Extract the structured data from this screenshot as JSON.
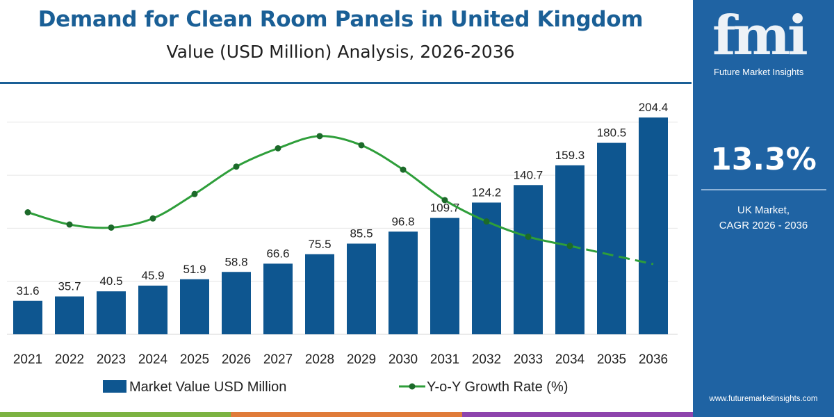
{
  "title": "Demand for Clean Room Panels in United Kingdom",
  "subtitle": "Value (USD Million) Analysis, 2026-2036",
  "colors": {
    "bar": "#0e5690",
    "line": "#2e9e3a",
    "accent": "#1a5f96",
    "panel": "#1f63a3",
    "bottom_bar": [
      "#7cb342",
      "#e07b39",
      "#8e44ad"
    ]
  },
  "chart_data": {
    "type": "bar",
    "categories": [
      "2021",
      "2022",
      "2023",
      "2024",
      "2025",
      "2026",
      "2027",
      "2028",
      "2029",
      "2030",
      "2031",
      "2032",
      "2033",
      "2034",
      "2035",
      "2036"
    ],
    "series": [
      {
        "name": "Market Value USD Million",
        "type": "bar",
        "values": [
          31.6,
          35.7,
          40.5,
          45.9,
          51.9,
          58.8,
          66.6,
          75.5,
          85.5,
          96.8,
          109.7,
          124.2,
          140.7,
          159.3,
          180.5,
          204.4
        ],
        "labels": [
          "31.6",
          "35.7",
          "40.5",
          "45.9",
          "51.9",
          "58.8",
          "66.6",
          "75.5",
          "85.5",
          "96.8",
          "109.7",
          "124.2",
          "140.7",
          "159.3",
          "180.5",
          "204.4"
        ]
      },
      {
        "name": "Y-o-Y Growth Rate (%)",
        "type": "line",
        "values": [
          13.0,
          12.8,
          12.75,
          12.9,
          13.3,
          13.75,
          14.05,
          14.25,
          14.1,
          13.7,
          13.2,
          12.85,
          12.6,
          12.45,
          12.3,
          12.15
        ],
        "dashed_from_index": 13
      }
    ],
    "ylim": [
      0,
      230
    ],
    "y2lim": [
      11,
      15
    ],
    "legend": "bottom",
    "grid": true
  },
  "legend": {
    "bar_label": "Market Value USD Million",
    "line_label": "Y-o-Y Growth Rate (%)"
  },
  "side_panel": {
    "logo_text": "fmi",
    "logo_tagline": "Future Market Insights",
    "cagr_value": "13.3%",
    "cagr_label_line1": "UK Market,",
    "cagr_label_line2": "CAGR 2026 - 2036",
    "website": "www.futuremarketinsights.com"
  }
}
